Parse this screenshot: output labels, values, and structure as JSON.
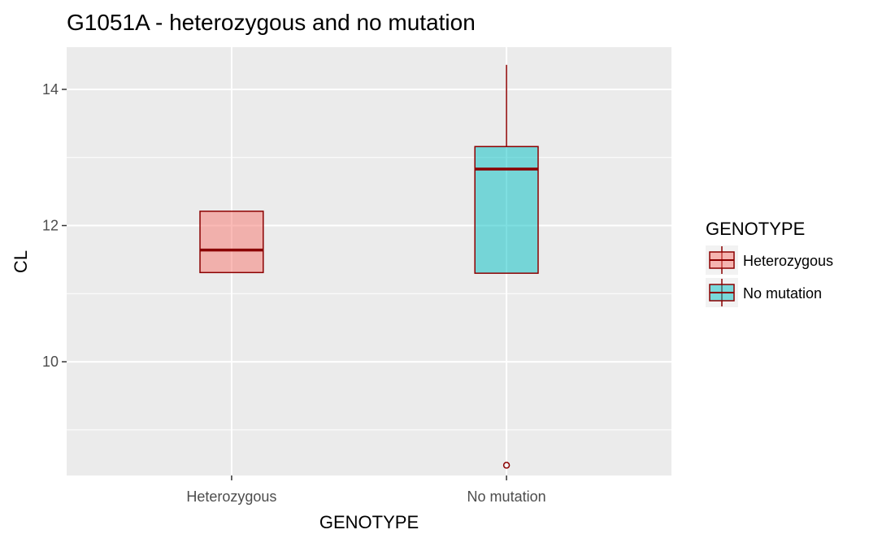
{
  "chart_data": {
    "type": "boxplot",
    "title": "G1051A - heterozygous and no mutation",
    "xlabel": "GENOTYPE",
    "ylabel": "CL",
    "categories": [
      "Heterozygous",
      "No mutation"
    ],
    "ylim": [
      8.33,
      14.62
    ],
    "y_ticks": [
      10,
      12,
      14
    ],
    "y_minor_ticks": [
      9,
      11,
      13
    ],
    "grid": true,
    "boxes": [
      {
        "category": "Heterozygous",
        "q1": 11.31,
        "median": 11.64,
        "q3": 12.21,
        "whisker_low": 11.31,
        "whisker_high": 12.21,
        "outliers": []
      },
      {
        "category": "No mutation",
        "q1": 11.3,
        "median": 12.83,
        "q3": 13.16,
        "whisker_low": 11.3,
        "whisker_high": 14.36,
        "outliers": [
          8.48
        ]
      }
    ],
    "legend": {
      "title": "GENOTYPE",
      "position": "right",
      "entries": [
        {
          "label": "Heterozygous",
          "fill": "#f8766d"
        },
        {
          "label": "No mutation",
          "fill": "#00bfc4"
        }
      ]
    },
    "colors": {
      "panel": "#ebebeb",
      "grid": "#ffffff",
      "box_outline": "#8b0000",
      "fill_opacity": 0.5
    }
  }
}
